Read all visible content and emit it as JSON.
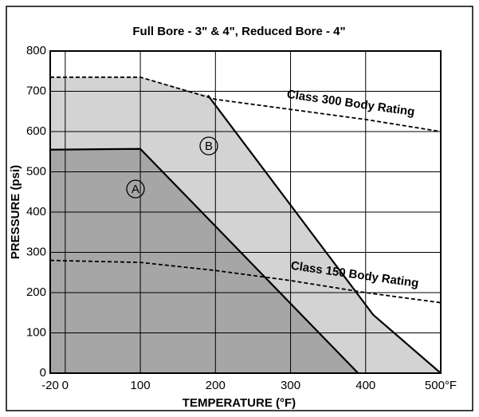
{
  "chart_data": {
    "type": "line",
    "title": "Full Bore - 3\" & 4\", Reduced Bore - 4\"",
    "x_label": "TEMPERATURE (°F)",
    "y_label": "PRESSURE (psi)",
    "xlim": [
      -20,
      500
    ],
    "ylim": [
      0,
      800
    ],
    "xticks": [
      -20,
      0,
      100,
      200,
      300,
      400,
      {
        "value": 500,
        "label": "500°F"
      }
    ],
    "yticks": [
      0,
      100,
      200,
      300,
      400,
      500,
      600,
      700,
      800
    ],
    "grid": true,
    "series": [
      {
        "name": "Class 300 Body Rating",
        "color": "#000000",
        "style": "dashed",
        "x": [
          -20,
          100,
          200,
          300,
          400,
          500
        ],
        "values": [
          735,
          735,
          680,
          655,
          630,
          600
        ]
      },
      {
        "name": "Class 150 Body Rating",
        "color": "#000000",
        "style": "dashed",
        "x": [
          -20,
          100,
          200,
          300,
          400,
          500
        ],
        "values": [
          280,
          275,
          255,
          230,
          200,
          175
        ]
      },
      {
        "name": "A",
        "color": "#000000",
        "fill": "#a6a6a6",
        "style": "solid",
        "x": [
          -20,
          100,
          390
        ],
        "values": [
          555,
          557,
          0
        ]
      },
      {
        "name": "B",
        "color": "#000000",
        "fill": "#d3d3d3",
        "style": "solid",
        "x": [
          190,
          410,
          500
        ],
        "values": [
          690,
          145,
          0
        ]
      }
    ]
  }
}
